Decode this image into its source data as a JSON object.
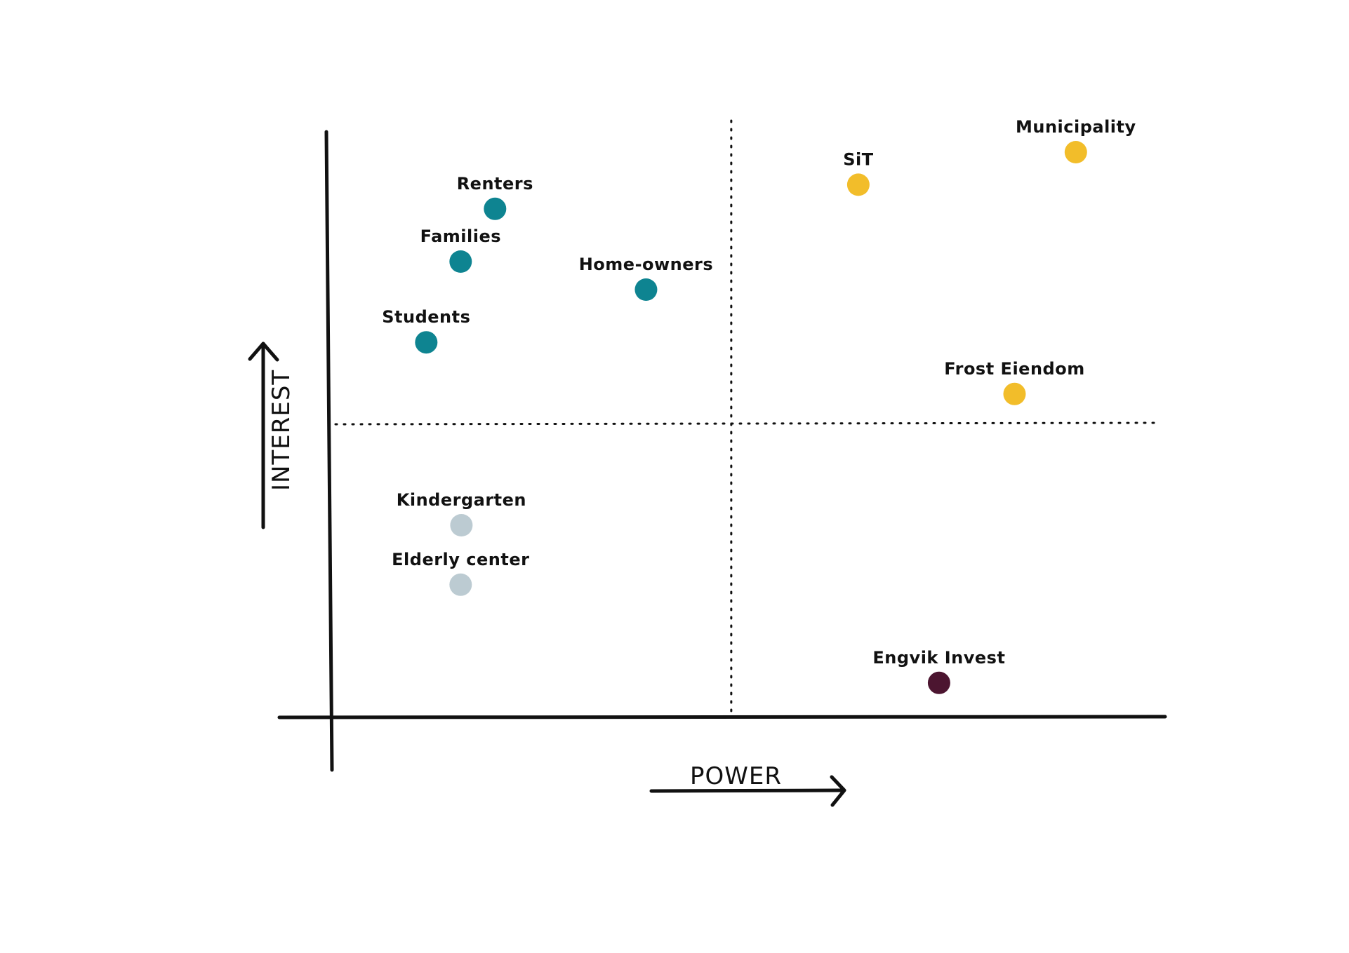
{
  "chart_data": {
    "type": "scatter",
    "title": "",
    "xlabel": "POWER",
    "ylabel": "INTEREST",
    "xlim": [
      0,
      100
    ],
    "ylim": [
      0,
      100
    ],
    "grid": false,
    "dividers": {
      "x": 49,
      "y": 50
    },
    "colors": {
      "teal": "#0e8491",
      "yellow": "#f2bd2a",
      "lightgray": "#bccbd2",
      "maroon": "#4c1530",
      "ink": "#111111"
    },
    "points": [
      {
        "label": "Renters",
        "x": 17.4,
        "y": 88.4,
        "color": "#0e8491"
      },
      {
        "label": "Families",
        "x": 12.8,
        "y": 79.0,
        "color": "#0e8491"
      },
      {
        "label": "Home-owners",
        "x": 37.6,
        "y": 74.0,
        "color": "#0e8491"
      },
      {
        "label": "Students",
        "x": 8.2,
        "y": 64.6,
        "color": "#0e8491"
      },
      {
        "label": "SiT",
        "x": 66.0,
        "y": 92.7,
        "color": "#f2bd2a"
      },
      {
        "label": "Municipality",
        "x": 95.1,
        "y": 98.5,
        "color": "#f2bd2a"
      },
      {
        "label": "Frost Eiendom",
        "x": 86.9,
        "y": 55.4,
        "color": "#f2bd2a"
      },
      {
        "label": "Kindergarten",
        "x": 12.9,
        "y": 32.0,
        "color": "#bccbd2"
      },
      {
        "label": "Elderly center",
        "x": 12.8,
        "y": 21.4,
        "color": "#bccbd2"
      },
      {
        "label": "Engvik Invest",
        "x": 76.8,
        "y": 3.9,
        "color": "#4c1530"
      }
    ]
  }
}
